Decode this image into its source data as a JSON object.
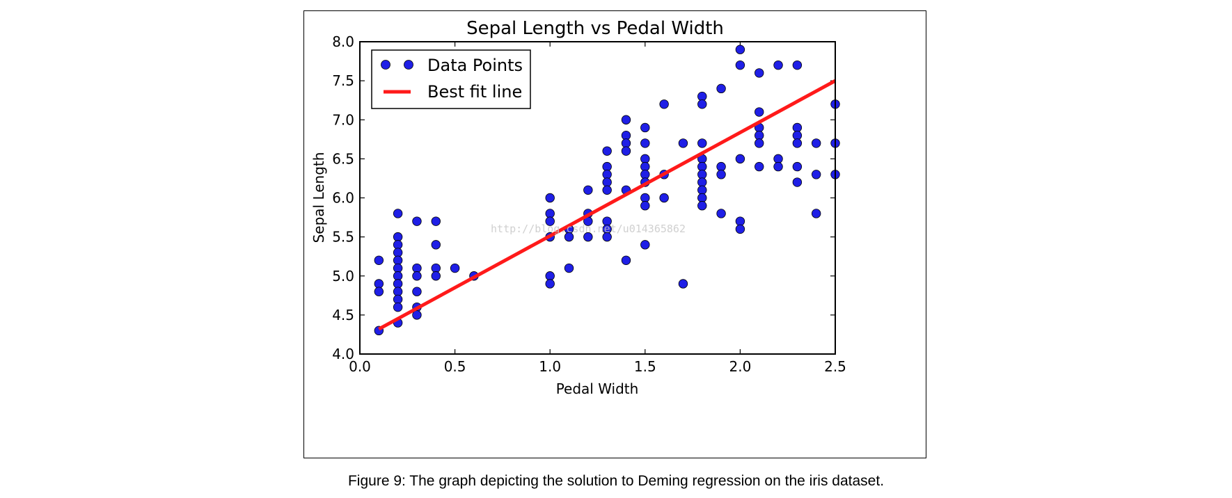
{
  "caption": "Figure 9: The graph depicting the solution to Deming regression on the iris dataset.",
  "watermark": "http://blog.csdn.net/u014365862",
  "chart_data": {
    "type": "scatter",
    "title": "Sepal Length vs Pedal Width",
    "xlabel": "Pedal Width",
    "ylabel": "Sepal Length",
    "xlim": [
      0.0,
      2.5
    ],
    "ylim": [
      4.0,
      8.0
    ],
    "xticks": [
      "0.0",
      "0.5",
      "1.0",
      "1.5",
      "2.0",
      "2.5"
    ],
    "yticks": [
      "4.0",
      "4.5",
      "5.0",
      "5.5",
      "6.0",
      "6.5",
      "7.0",
      "7.5",
      "8.0"
    ],
    "grid": false,
    "legend_position": "top-left",
    "series": [
      {
        "name": "Data Points",
        "kind": "scatter",
        "color": "#1f1fe6",
        "points": [
          [
            0.1,
            5.2
          ],
          [
            0.1,
            4.9
          ],
          [
            0.1,
            4.8
          ],
          [
            0.1,
            4.3
          ],
          [
            0.2,
            5.8
          ],
          [
            0.2,
            5.5
          ],
          [
            0.2,
            5.4
          ],
          [
            0.2,
            5.3
          ],
          [
            0.2,
            5.2
          ],
          [
            0.2,
            5.1
          ],
          [
            0.2,
            5.0
          ],
          [
            0.2,
            4.9
          ],
          [
            0.2,
            4.8
          ],
          [
            0.2,
            4.7
          ],
          [
            0.2,
            4.6
          ],
          [
            0.2,
            4.4
          ],
          [
            0.3,
            5.7
          ],
          [
            0.3,
            5.1
          ],
          [
            0.3,
            5.0
          ],
          [
            0.3,
            4.8
          ],
          [
            0.3,
            4.6
          ],
          [
            0.3,
            4.5
          ],
          [
            0.4,
            5.7
          ],
          [
            0.4,
            5.4
          ],
          [
            0.4,
            5.1
          ],
          [
            0.4,
            5.0
          ],
          [
            0.5,
            5.1
          ],
          [
            0.6,
            5.0
          ],
          [
            1.0,
            6.0
          ],
          [
            1.0,
            5.8
          ],
          [
            1.0,
            5.7
          ],
          [
            1.0,
            5.5
          ],
          [
            1.0,
            5.0
          ],
          [
            1.0,
            4.9
          ],
          [
            1.1,
            5.6
          ],
          [
            1.1,
            5.5
          ],
          [
            1.1,
            5.1
          ],
          [
            1.2,
            6.1
          ],
          [
            1.2,
            5.8
          ],
          [
            1.2,
            5.7
          ],
          [
            1.2,
            5.5
          ],
          [
            1.3,
            6.6
          ],
          [
            1.3,
            6.4
          ],
          [
            1.3,
            6.3
          ],
          [
            1.3,
            6.2
          ],
          [
            1.3,
            6.1
          ],
          [
            1.3,
            5.7
          ],
          [
            1.3,
            5.6
          ],
          [
            1.3,
            5.5
          ],
          [
            1.4,
            7.0
          ],
          [
            1.4,
            6.8
          ],
          [
            1.4,
            6.7
          ],
          [
            1.4,
            6.6
          ],
          [
            1.4,
            6.1
          ],
          [
            1.4,
            5.2
          ],
          [
            1.5,
            6.9
          ],
          [
            1.5,
            6.7
          ],
          [
            1.5,
            6.5
          ],
          [
            1.5,
            6.4
          ],
          [
            1.5,
            6.3
          ],
          [
            1.5,
            6.2
          ],
          [
            1.5,
            6.0
          ],
          [
            1.5,
            5.9
          ],
          [
            1.5,
            5.4
          ],
          [
            1.6,
            7.2
          ],
          [
            1.6,
            6.3
          ],
          [
            1.6,
            6.0
          ],
          [
            1.7,
            6.7
          ],
          [
            1.7,
            4.9
          ],
          [
            1.8,
            7.3
          ],
          [
            1.8,
            7.2
          ],
          [
            1.8,
            6.7
          ],
          [
            1.8,
            6.5
          ],
          [
            1.8,
            6.4
          ],
          [
            1.8,
            6.3
          ],
          [
            1.8,
            6.2
          ],
          [
            1.8,
            6.1
          ],
          [
            1.8,
            6.0
          ],
          [
            1.8,
            5.9
          ],
          [
            1.9,
            7.4
          ],
          [
            1.9,
            6.4
          ],
          [
            1.9,
            6.3
          ],
          [
            1.9,
            5.8
          ],
          [
            2.0,
            7.9
          ],
          [
            2.0,
            7.7
          ],
          [
            2.0,
            6.5
          ],
          [
            2.0,
            5.7
          ],
          [
            2.0,
            5.6
          ],
          [
            2.1,
            7.6
          ],
          [
            2.1,
            7.1
          ],
          [
            2.1,
            6.9
          ],
          [
            2.1,
            6.8
          ],
          [
            2.1,
            6.7
          ],
          [
            2.1,
            6.4
          ],
          [
            2.2,
            7.7
          ],
          [
            2.2,
            6.5
          ],
          [
            2.2,
            6.4
          ],
          [
            2.3,
            7.7
          ],
          [
            2.3,
            6.9
          ],
          [
            2.3,
            6.8
          ],
          [
            2.3,
            6.7
          ],
          [
            2.3,
            6.4
          ],
          [
            2.3,
            6.2
          ],
          [
            2.4,
            6.7
          ],
          [
            2.4,
            6.3
          ],
          [
            2.4,
            5.8
          ],
          [
            2.5,
            7.2
          ],
          [
            2.5,
            6.7
          ],
          [
            2.5,
            6.3
          ]
        ]
      },
      {
        "name": "Best fit line",
        "kind": "line",
        "color": "#ff1a1a",
        "points": [
          [
            0.1,
            4.32
          ],
          [
            2.5,
            7.5
          ]
        ]
      }
    ]
  }
}
